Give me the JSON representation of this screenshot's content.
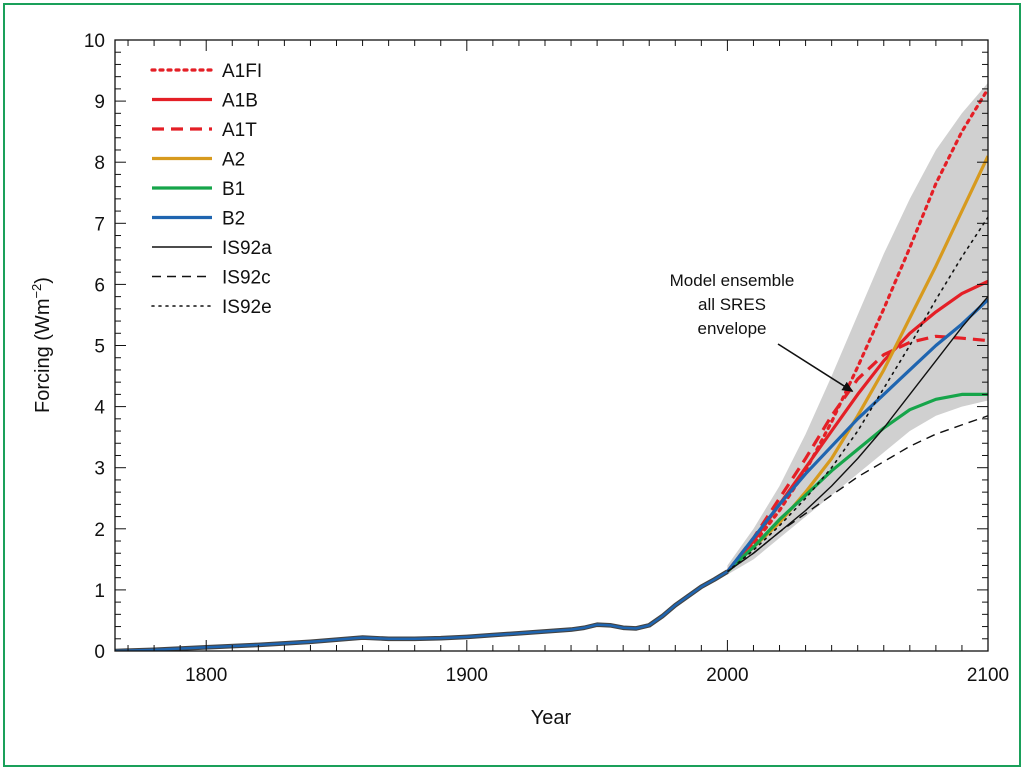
{
  "chart_data": {
    "type": "line",
    "xlabel": "Year",
    "ylabel": "Forcing (Wm",
    "ylabel_sup": "−2",
    "ylabel_close": ")",
    "xlim": [
      1765,
      2100
    ],
    "ylim": [
      0,
      10
    ],
    "x_ticks": [
      1800,
      1900,
      2000,
      2100
    ],
    "y_ticks": [
      0,
      1,
      2,
      3,
      4,
      5,
      6,
      7,
      8,
      9,
      10
    ],
    "grid": false,
    "legend_position": "top-left",
    "historical": {
      "x": [
        1765,
        1780,
        1800,
        1820,
        1840,
        1860,
        1870,
        1880,
        1890,
        1900,
        1910,
        1920,
        1930,
        1940,
        1945,
        1950,
        1955,
        1960,
        1965,
        1970,
        1975,
        1980,
        1985,
        1990,
        1995,
        2000
      ],
      "y": [
        0,
        0.02,
        0.06,
        0.1,
        0.15,
        0.22,
        0.2,
        0.2,
        0.21,
        0.23,
        0.26,
        0.29,
        0.32,
        0.35,
        0.38,
        0.43,
        0.42,
        0.38,
        0.37,
        0.42,
        0.57,
        0.75,
        0.9,
        1.05,
        1.17,
        1.3
      ]
    },
    "series": [
      {
        "name": "A1FI",
        "style": "dotted",
        "color": "#e41f26",
        "x": [
          2000,
          2010,
          2020,
          2030,
          2040,
          2050,
          2060,
          2070,
          2080,
          2090,
          2100
        ],
        "y": [
          1.3,
          1.75,
          2.3,
          2.95,
          3.75,
          4.65,
          5.6,
          6.6,
          7.65,
          8.5,
          9.2
        ]
      },
      {
        "name": "A1B",
        "style": "solid",
        "color": "#e41f26",
        "x": [
          2000,
          2010,
          2020,
          2030,
          2040,
          2050,
          2060,
          2070,
          2080,
          2090,
          2100
        ],
        "y": [
          1.3,
          1.8,
          2.4,
          3.0,
          3.6,
          4.2,
          4.75,
          5.2,
          5.55,
          5.85,
          6.05
        ]
      },
      {
        "name": "A1T",
        "style": "dashed",
        "color": "#e41f26",
        "x": [
          2000,
          2010,
          2020,
          2030,
          2040,
          2050,
          2060,
          2070,
          2080,
          2090,
          2100
        ],
        "y": [
          1.3,
          1.85,
          2.5,
          3.15,
          3.85,
          4.45,
          4.85,
          5.05,
          5.15,
          5.12,
          5.08
        ]
      },
      {
        "name": "A2",
        "style": "solid",
        "color": "#d79a1e",
        "x": [
          2000,
          2010,
          2020,
          2030,
          2040,
          2050,
          2060,
          2070,
          2080,
          2090,
          2100
        ],
        "y": [
          1.3,
          1.7,
          2.1,
          2.6,
          3.15,
          3.85,
          4.6,
          5.45,
          6.3,
          7.2,
          8.1
        ]
      },
      {
        "name": "B1",
        "style": "solid",
        "color": "#16a54a",
        "x": [
          2000,
          2010,
          2020,
          2030,
          2040,
          2050,
          2060,
          2070,
          2080,
          2090,
          2100
        ],
        "y": [
          1.3,
          1.7,
          2.15,
          2.55,
          2.95,
          3.3,
          3.65,
          3.95,
          4.12,
          4.2,
          4.2
        ]
      },
      {
        "name": "B2",
        "style": "solid",
        "color": "#1f65b0",
        "x": [
          2000,
          2010,
          2020,
          2030,
          2040,
          2050,
          2060,
          2070,
          2080,
          2090,
          2100
        ],
        "y": [
          1.3,
          1.85,
          2.4,
          2.9,
          3.35,
          3.8,
          4.2,
          4.6,
          5.0,
          5.35,
          5.75
        ]
      },
      {
        "name": "IS92a",
        "style": "solid-thin",
        "color": "#111111",
        "x": [
          2000,
          2010,
          2020,
          2030,
          2040,
          2050,
          2060,
          2070,
          2080,
          2090,
          2100
        ],
        "y": [
          1.3,
          1.6,
          1.95,
          2.3,
          2.7,
          3.15,
          3.65,
          4.2,
          4.75,
          5.3,
          5.8
        ]
      },
      {
        "name": "IS92c",
        "style": "dashed-thin",
        "color": "#111111",
        "x": [
          2000,
          2010,
          2020,
          2030,
          2040,
          2050,
          2060,
          2070,
          2080,
          2090,
          2100
        ],
        "y": [
          1.3,
          1.6,
          1.95,
          2.25,
          2.55,
          2.85,
          3.1,
          3.35,
          3.55,
          3.7,
          3.85
        ]
      },
      {
        "name": "IS92e",
        "style": "dotted-thin",
        "color": "#111111",
        "x": [
          2000,
          2010,
          2020,
          2030,
          2040,
          2050,
          2060,
          2070,
          2080,
          2090,
          2100
        ],
        "y": [
          1.3,
          1.65,
          2.05,
          2.5,
          3.0,
          3.6,
          4.3,
          5.0,
          5.75,
          6.45,
          7.1
        ]
      }
    ],
    "envelope": {
      "x": [
        2000,
        2010,
        2020,
        2030,
        2040,
        2050,
        2060,
        2070,
        2080,
        2090,
        2100
      ],
      "upper": [
        1.4,
        2.0,
        2.7,
        3.55,
        4.5,
        5.5,
        6.5,
        7.4,
        8.2,
        8.8,
        9.3
      ],
      "lower": [
        1.25,
        1.5,
        1.85,
        2.2,
        2.55,
        2.9,
        3.25,
        3.6,
        3.85,
        4.0,
        4.1
      ],
      "color": "#d0d0d0"
    },
    "annotation": {
      "lines": [
        "Model ensemble",
        "all SRES",
        "envelope"
      ],
      "arrow_to": {
        "x": 2048,
        "y": 4.25
      }
    }
  }
}
